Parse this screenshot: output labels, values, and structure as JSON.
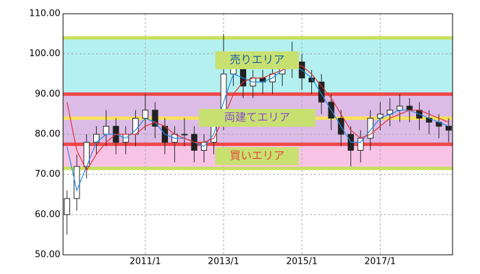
{
  "chart_data": {
    "type": "candlestick",
    "xlim": [
      2008.9,
      2018.85
    ],
    "xticks": [
      {
        "value": 2011,
        "label": "2011/1"
      },
      {
        "value": 2013,
        "label": "2013/1"
      },
      {
        "value": 2015,
        "label": "2015/1"
      },
      {
        "value": 2017,
        "label": "2017/1"
      }
    ],
    "ylim": [
      50,
      110
    ],
    "yticks": [
      {
        "value": 50,
        "label": "50.00"
      },
      {
        "value": 60,
        "label": "60.00"
      },
      {
        "value": 70,
        "label": "70.00"
      },
      {
        "value": 80,
        "label": "80.00"
      },
      {
        "value": 90,
        "label": "90.00"
      },
      {
        "value": 100,
        "label": "100.00"
      },
      {
        "value": 110,
        "label": "110.00"
      }
    ],
    "grid": true,
    "zones": [
      {
        "label": "売りエリア",
        "from": 90,
        "to": 104,
        "color": "#b4f0f0",
        "text_color": "#1a5fa8"
      },
      {
        "label": "両建てエリア",
        "from": 77.5,
        "to": 90,
        "color": "#dcbce6",
        "text_color": "#8a4fc8"
      },
      {
        "label": "買いエリア",
        "from": 71.5,
        "to": 77.5,
        "color": "#f8c4e6",
        "text_color": "#e8483c"
      }
    ],
    "levels": [
      {
        "value": 104,
        "color": "#c8e060"
      },
      {
        "value": 90,
        "color": "#f04848"
      },
      {
        "value": 84,
        "color": "#f8e060"
      },
      {
        "value": 77.5,
        "color": "#f04848"
      },
      {
        "value": 71.5,
        "color": "#c8e060"
      }
    ],
    "x": [
      2009.0,
      2009.25,
      2009.5,
      2009.75,
      2010.0,
      2010.25,
      2010.5,
      2010.75,
      2011.0,
      2011.25,
      2011.5,
      2011.75,
      2012.0,
      2012.25,
      2012.5,
      2012.75,
      2013.0,
      2013.25,
      2013.5,
      2013.75,
      2014.0,
      2014.25,
      2014.5,
      2014.75,
      2015.0,
      2015.25,
      2015.5,
      2015.75,
      2016.0,
      2016.25,
      2016.5,
      2016.75,
      2017.0,
      2017.25,
      2017.5,
      2017.75,
      2018.0,
      2018.25,
      2018.5,
      2018.75
    ],
    "open": [
      60,
      64,
      72,
      78,
      80,
      82,
      78,
      80,
      84,
      86,
      82,
      78,
      80,
      80,
      76,
      78,
      84,
      95,
      98,
      92,
      94,
      93,
      95,
      97,
      98,
      94,
      93,
      88,
      84,
      80,
      76,
      79,
      84,
      85,
      86,
      87,
      86,
      84,
      83,
      82
    ],
    "high": [
      66,
      75,
      80,
      82,
      86,
      84,
      82,
      86,
      90,
      88,
      84,
      82,
      84,
      82,
      80,
      86,
      105,
      100,
      99,
      96,
      96,
      98,
      100,
      103,
      100,
      96,
      95,
      90,
      86,
      82,
      81,
      86,
      88,
      89,
      90,
      89,
      88,
      86,
      85,
      84
    ],
    "low": [
      55,
      61,
      69,
      75,
      77,
      75,
      75,
      77,
      81,
      79,
      75,
      73,
      77,
      73,
      73,
      75,
      81,
      92,
      89,
      89,
      90,
      90,
      92,
      94,
      91,
      90,
      85,
      81,
      77,
      72,
      73,
      76,
      81,
      82,
      83,
      83,
      81,
      80,
      79,
      78
    ],
    "close": [
      64,
      72,
      78,
      80,
      82,
      78,
      80,
      84,
      86,
      82,
      78,
      80,
      80,
      76,
      78,
      84,
      95,
      98,
      92,
      94,
      93,
      95,
      97,
      98,
      94,
      93,
      88,
      84,
      80,
      76,
      79,
      84,
      85,
      86,
      87,
      86,
      84,
      83,
      82,
      81
    ],
    "lines": [
      {
        "color": "#1e8ce6",
        "values": [
          77,
          66,
          72,
          78,
          80,
          80,
          79,
          81,
          84,
          83,
          80,
          79,
          79,
          78,
          77,
          80,
          88,
          95,
          94,
          93,
          93,
          94,
          96,
          97,
          96,
          94,
          90,
          86,
          82,
          78,
          78,
          81,
          84,
          85,
          86,
          86,
          85,
          84,
          83,
          82
        ]
      },
      {
        "color": "#e03030",
        "values": [
          88,
          76,
          71,
          75,
          78,
          80,
          80,
          80,
          82,
          83,
          82,
          80,
          79,
          78,
          78,
          79,
          84,
          90,
          93,
          94,
          94,
          95,
          96,
          97,
          97,
          95,
          92,
          89,
          85,
          81,
          79,
          80,
          82,
          84,
          85,
          86,
          86,
          85,
          84,
          83
        ]
      }
    ]
  }
}
